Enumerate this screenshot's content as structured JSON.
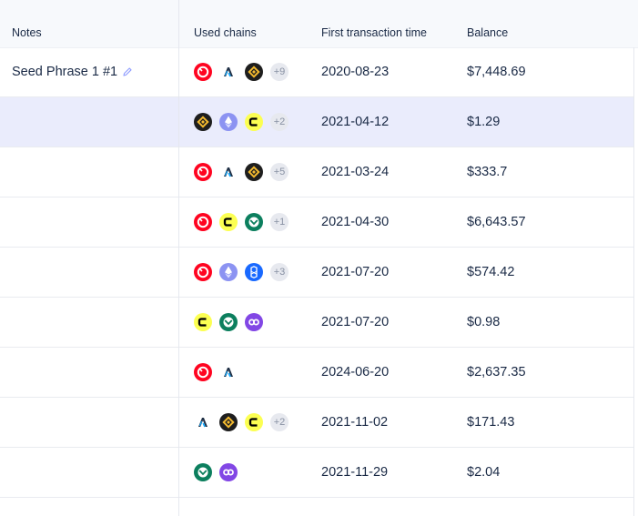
{
  "columns": {
    "notes": "Notes",
    "chains": "Used chains",
    "time": "First transaction time",
    "balance": "Balance"
  },
  "rows": [
    {
      "note": "Seed Phrase 1 #1",
      "chains": [
        "optimism",
        "arbitrum",
        "bnb"
      ],
      "more": "+9",
      "time": "2020-08-23",
      "balance": "$7,448.69",
      "selected": false
    },
    {
      "note": "",
      "chains": [
        "bnb",
        "ethereum",
        "celo"
      ],
      "more": "+2",
      "time": "2021-04-12",
      "balance": "$1.29",
      "selected": true
    },
    {
      "note": "",
      "chains": [
        "optimism",
        "arbitrum",
        "bnb"
      ],
      "more": "+5",
      "time": "2021-03-24",
      "balance": "$333.7",
      "selected": false
    },
    {
      "note": "",
      "chains": [
        "optimism",
        "celo",
        "gnosis"
      ],
      "more": "+1",
      "time": "2021-04-30",
      "balance": "$6,643.57",
      "selected": false
    },
    {
      "note": "",
      "chains": [
        "optimism",
        "ethereum",
        "fantom"
      ],
      "more": "+3",
      "time": "2021-07-20",
      "balance": "$574.42",
      "selected": false
    },
    {
      "note": "",
      "chains": [
        "celo",
        "gnosis",
        "polygon"
      ],
      "more": "",
      "time": "2021-07-20",
      "balance": "$0.98",
      "selected": false
    },
    {
      "note": "",
      "chains": [
        "optimism",
        "arbitrum"
      ],
      "more": "",
      "time": "2024-06-20",
      "balance": "$2,637.35",
      "selected": false
    },
    {
      "note": "",
      "chains": [
        "arbitrum",
        "bnb",
        "celo"
      ],
      "more": "+2",
      "time": "2021-11-02",
      "balance": "$171.43",
      "selected": false
    },
    {
      "note": "",
      "chains": [
        "gnosis",
        "polygon"
      ],
      "more": "",
      "time": "2021-11-29",
      "balance": "$2.04",
      "selected": false
    }
  ],
  "colors": {
    "header_bg": "#f7f9fc",
    "selected_row_bg": "#eaecfc",
    "text": "#192945",
    "edit_icon": "#8e9cff"
  }
}
